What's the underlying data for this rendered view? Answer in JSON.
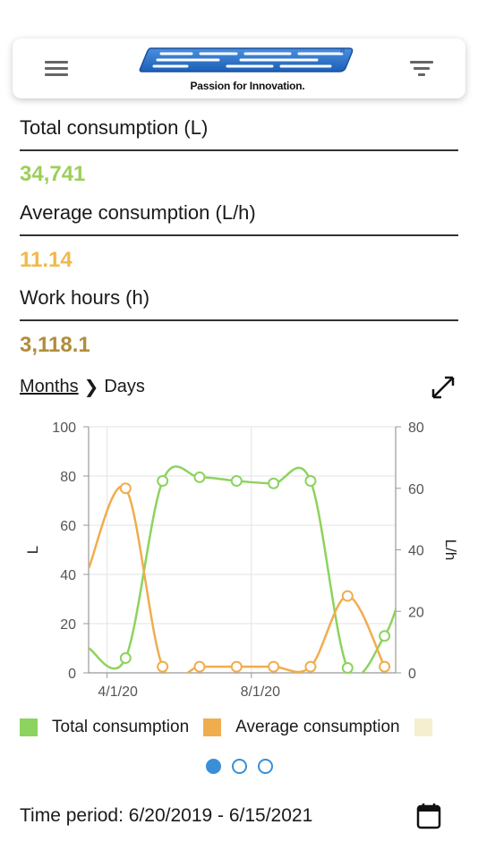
{
  "header": {
    "brand_name": "Landini",
    "tagline": "Passion for Innovation."
  },
  "metrics": [
    {
      "label": "Total consumption (L)",
      "value": "34,741",
      "color": "#9ccf5a"
    },
    {
      "label": "Average consumption (L/h)",
      "value": "11.14",
      "color": "#f0b94a"
    },
    {
      "label": "Work hours (h)",
      "value": "3,118.1",
      "color": "#b08d3a"
    }
  ],
  "breadcrumb": {
    "level1": "Months",
    "level2": "Days"
  },
  "chart_data": {
    "type": "line",
    "x_tick_labels": [
      "4/1/20",
      "8/1/20"
    ],
    "y_left": {
      "label": "L",
      "ticks": [
        "0",
        "20",
        "40",
        "60",
        "80",
        "100"
      ],
      "range": [
        0,
        100
      ]
    },
    "y_right": {
      "label": "L/h",
      "ticks": [
        "0",
        "20",
        "40",
        "60",
        "80"
      ],
      "range": [
        0,
        80
      ]
    },
    "grid": true,
    "series": [
      {
        "name": "Total consumption",
        "axis": "left",
        "color": "#8dd35f",
        "points": [
          {
            "t": -0.5,
            "v": 10,
            "marker": false
          },
          {
            "t": 0.5,
            "v": 6,
            "marker": true
          },
          {
            "t": 1.5,
            "v": 78,
            "marker": true
          },
          {
            "t": 2.5,
            "v": 79.5,
            "marker": true
          },
          {
            "t": 3.5,
            "v": 78,
            "marker": true
          },
          {
            "t": 4.5,
            "v": 77,
            "marker": true
          },
          {
            "t": 5.5,
            "v": 78,
            "marker": true
          },
          {
            "t": 6.5,
            "v": 2,
            "marker": true
          },
          {
            "t": 7.5,
            "v": 15,
            "marker": true
          },
          {
            "t": 8,
            "v": 36,
            "marker": false
          }
        ]
      },
      {
        "name": "Average consumption",
        "axis": "right",
        "color": "#f0ad4e",
        "points": [
          {
            "t": -0.5,
            "v": 34,
            "marker": false
          },
          {
            "t": 0.5,
            "v": 60,
            "marker": true
          },
          {
            "t": 1.5,
            "v": 2,
            "marker": true
          },
          {
            "t": 2.5,
            "v": 2,
            "marker": true
          },
          {
            "t": 3.5,
            "v": 2,
            "marker": true
          },
          {
            "t": 4.5,
            "v": 2,
            "marker": true
          },
          {
            "t": 5.5,
            "v": 2,
            "marker": true
          },
          {
            "t": 6.5,
            "v": 25,
            "marker": true
          },
          {
            "t": 7.5,
            "v": 2,
            "marker": true
          }
        ]
      }
    ],
    "legend": [
      {
        "name": "Total consumption",
        "color": "#8dd35f"
      },
      {
        "name": "Average consumption",
        "color": "#f0ad4e"
      },
      {
        "name": "",
        "color": "#f6efcf"
      }
    ]
  },
  "pagination": {
    "count": 3,
    "active": 0
  },
  "time_period": "Time period: 6/20/2019 - 6/15/2021"
}
